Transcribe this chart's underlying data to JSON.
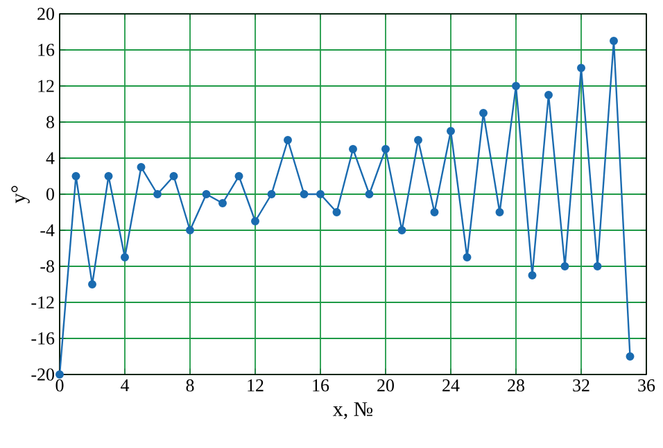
{
  "chart_data": {
    "type": "line",
    "xlabel": "x, №",
    "ylabel": "y°",
    "x": [
      0,
      1,
      2,
      3,
      4,
      5,
      6,
      7,
      8,
      9,
      10,
      11,
      12,
      13,
      14,
      15,
      16,
      17,
      18,
      19,
      20,
      21,
      22,
      23,
      24,
      25,
      26,
      27,
      28,
      29,
      30,
      31,
      32,
      33,
      34,
      35
    ],
    "series": [
      {
        "color": "#1a6bb0",
        "values": [
          -20,
          2,
          -10,
          2,
          -7,
          3,
          0,
          2,
          -4,
          0,
          -1,
          2,
          -3,
          0,
          6,
          0,
          0,
          -2,
          5,
          0,
          5,
          -4,
          6,
          -2,
          7,
          -7,
          9,
          -2,
          12,
          -9,
          11,
          -8,
          14,
          -8,
          17,
          -18
        ]
      }
    ],
    "xlim": [
      0,
      36
    ],
    "xticks": [
      0,
      4,
      8,
      12,
      16,
      20,
      24,
      28,
      32,
      36
    ],
    "ylim": [
      -20,
      20
    ],
    "yticks": [
      -20,
      -16,
      -12,
      -8,
      -4,
      0,
      4,
      8,
      12,
      16,
      20
    ],
    "grid": true,
    "marker": "circle",
    "line_style": "solid"
  }
}
